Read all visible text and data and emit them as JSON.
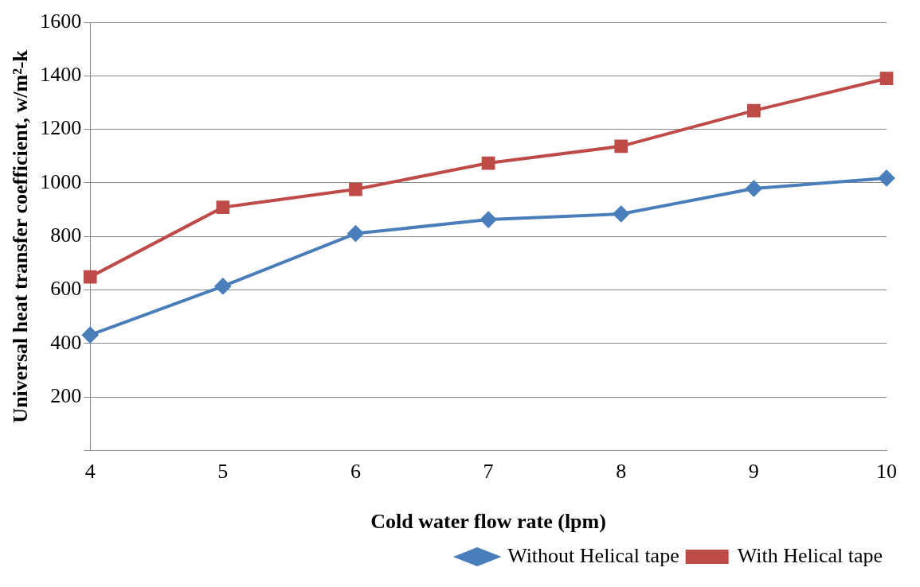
{
  "chart_data": {
    "type": "line",
    "xlabel": "Cold water flow rate (lpm)",
    "ylabel": "Universal heat transfer coefficient, w/m²-k",
    "categories": [
      "4",
      "5",
      "6",
      "7",
      "8",
      "9",
      "10"
    ],
    "ylim": [
      0,
      1600
    ],
    "yticks": [
      {
        "value": 0,
        "label": null
      },
      200,
      400,
      600,
      800,
      1000,
      1200,
      1400,
      1600
    ],
    "grid": "y",
    "legend": "bottom right",
    "series": [
      {
        "name": "Without Helical tape",
        "color": "#4a7ebb",
        "marker": "diamond",
        "values": [
          432,
          614,
          811,
          863,
          884,
          979,
          1018
        ]
      },
      {
        "name": "With Helical tape",
        "color": "#be4b48",
        "marker": "square",
        "values": [
          649,
          909,
          976,
          1074,
          1137,
          1270,
          1390
        ]
      }
    ]
  }
}
